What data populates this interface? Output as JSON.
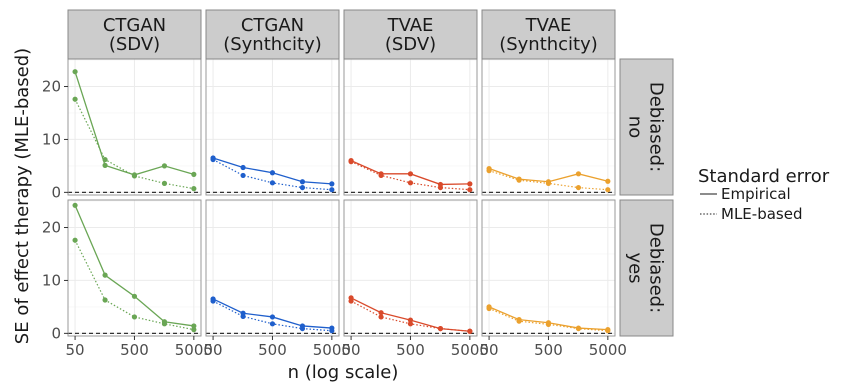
{
  "chart_data": {
    "type": "line",
    "x_scale": "log",
    "xlabel": "n (log scale)",
    "ylabel": "SE of effect therapy (MLE-based)",
    "x_ticks": [
      50,
      500,
      5000
    ],
    "x_tick_labels": [
      "50",
      "500",
      "5000"
    ],
    "y_ticks": [
      0,
      10,
      20
    ],
    "y_tick_labels": [
      "0",
      "10",
      "20"
    ],
    "ylim": [
      -0.5,
      25.2
    ],
    "xlim": [
      38,
      6600
    ],
    "reference_line_y": 0,
    "columns": [
      {
        "label": "CTGAN\n(SDV)",
        "color": "#6aa655"
      },
      {
        "label": "CTGAN\n(Synthcity)",
        "color": "#1f5fcc"
      },
      {
        "label": "TVAE\n(SDV)",
        "color": "#d94a2b"
      },
      {
        "label": "TVAE\n(Synthcity)",
        "color": "#eba12e"
      }
    ],
    "rows": [
      {
        "label": "Debiased:\nno"
      },
      {
        "label": "Debiased:\nyes"
      }
    ],
    "x": [
      50,
      160,
      500,
      1600,
      5000
    ],
    "legend": {
      "title": "Standard error",
      "entries": [
        {
          "label": "Empirical",
          "style": "solid"
        },
        {
          "label": "MLE-based",
          "style": "dotted"
        }
      ],
      "placement": "right"
    },
    "panels": [
      [
        {
          "empirical": [
            22.8,
            5.1,
            3.3,
            5.0,
            3.4
          ],
          "mle": [
            17.6,
            6.2,
            3.1,
            1.7,
            0.7
          ]
        },
        {
          "empirical": [
            6.5,
            4.7,
            3.7,
            2.0,
            1.6
          ],
          "mle": [
            6.2,
            3.2,
            1.8,
            0.9,
            0.5
          ]
        },
        {
          "empirical": [
            6.0,
            3.5,
            3.5,
            1.5,
            1.6
          ],
          "mle": [
            5.8,
            3.2,
            1.8,
            0.9,
            0.5
          ]
        },
        {
          "empirical": [
            4.5,
            2.5,
            2.0,
            3.5,
            2.1
          ],
          "mle": [
            4.1,
            2.3,
            1.7,
            0.9,
            0.5
          ]
        }
      ],
      [
        {
          "empirical": [
            24.2,
            11.0,
            7.0,
            2.2,
            1.4
          ],
          "mle": [
            17.6,
            6.3,
            3.1,
            1.8,
            0.7
          ]
        },
        {
          "empirical": [
            6.5,
            3.8,
            3.1,
            1.4,
            1.0
          ],
          "mle": [
            6.1,
            3.2,
            1.8,
            0.9,
            0.5
          ]
        },
        {
          "empirical": [
            6.7,
            3.9,
            2.5,
            0.9,
            0.4
          ],
          "mle": [
            6.1,
            3.1,
            1.8,
            0.9,
            0.4
          ]
        },
        {
          "empirical": [
            5.0,
            2.6,
            2.0,
            1.0,
            0.7
          ],
          "mle": [
            4.7,
            2.3,
            1.7,
            0.9,
            0.5
          ]
        }
      ]
    ]
  }
}
